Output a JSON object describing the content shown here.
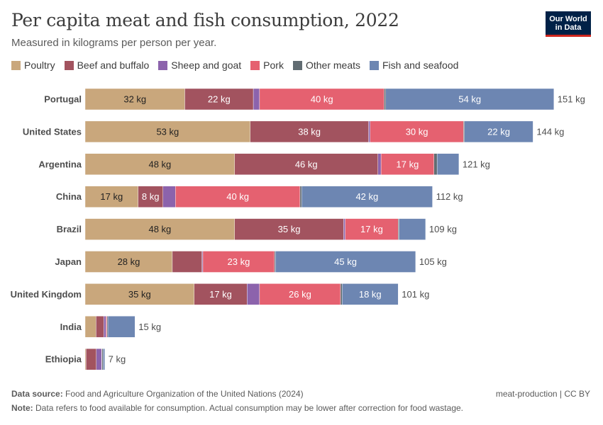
{
  "header": {
    "title": "Per capita meat and fish consumption, 2022",
    "subtitle": "Measured in kilograms per person per year.",
    "logo_line1": "Our World",
    "logo_line2": "in Data"
  },
  "colors": {
    "Poultry": "#c9a77c",
    "Beef and buffalo": "#a2535f",
    "Sheep and goat": "#8c63ac",
    "Pork": "#e56170",
    "Other meats": "#616c72",
    "Fish and seafood": "#6d86b2"
  },
  "chart_data": {
    "type": "bar",
    "orientation": "horizontal",
    "stacked": true,
    "unit": "kg",
    "categories": [
      "Portugal",
      "United States",
      "Argentina",
      "China",
      "Brazil",
      "Japan",
      "United Kingdom",
      "India",
      "Ethiopia"
    ],
    "series": [
      {
        "name": "Poultry",
        "values": [
          32,
          53,
          48,
          17,
          48,
          28,
          35,
          3.5,
          0.3
        ]
      },
      {
        "name": "Beef and buffalo",
        "values": [
          22,
          38,
          46,
          8,
          35,
          9.5,
          17,
          2.5,
          3.3
        ]
      },
      {
        "name": "Sheep and goat",
        "values": [
          2,
          0.5,
          1,
          4,
          0.5,
          0.3,
          4,
          0.7,
          1.7
        ]
      },
      {
        "name": "Pork",
        "values": [
          40,
          30,
          17,
          40,
          17,
          23,
          26,
          0.3,
          0.1
        ]
      },
      {
        "name": "Other meats",
        "values": [
          0.5,
          0.3,
          1,
          0.5,
          0.3,
          0.3,
          0.5,
          0.3,
          0.4
        ]
      },
      {
        "name": "Fish and seafood",
        "values": [
          54,
          22,
          7,
          42,
          8.5,
          45,
          18,
          8.7,
          0.5
        ]
      }
    ],
    "bar_labels": [
      [
        "32 kg",
        "22 kg",
        "",
        "40 kg",
        "",
        "54 kg"
      ],
      [
        "53 kg",
        "38 kg",
        "",
        "30 kg",
        "",
        "22 kg"
      ],
      [
        "48 kg",
        "46 kg",
        "",
        "17 kg",
        "",
        ""
      ],
      [
        "17 kg",
        "8 kg",
        "",
        "40 kg",
        "",
        "42 kg"
      ],
      [
        "48 kg",
        "35 kg",
        "",
        "17 kg",
        "",
        ""
      ],
      [
        "28 kg",
        "",
        "",
        "23 kg",
        "",
        "45 kg"
      ],
      [
        "35 kg",
        "17 kg",
        "",
        "26 kg",
        "",
        "18 kg"
      ],
      [
        "",
        "",
        "",
        "",
        "",
        ""
      ],
      [
        "",
        "",
        "",
        "",
        "",
        ""
      ]
    ],
    "totals": [
      "151 kg",
      "144 kg",
      "121 kg",
      "112 kg",
      "109 kg",
      "105 kg",
      "101 kg",
      "15 kg",
      "7 kg"
    ],
    "xlim": [
      0,
      151
    ],
    "grid": false,
    "legend_position": "top"
  },
  "footer": {
    "source_label": "Data source:",
    "source_text": "Food and Agriculture Organization of the United Nations (2024)",
    "note_label": "Note:",
    "note_text": "Data refers to food available for consumption. Actual consumption may be lower after correction for food wastage.",
    "license": "meat-production | CC BY"
  }
}
